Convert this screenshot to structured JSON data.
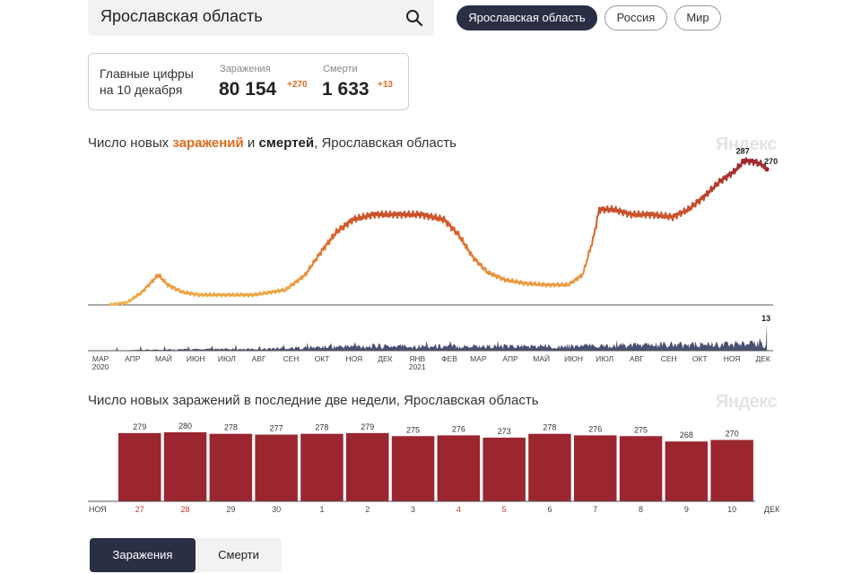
{
  "search": {
    "value": "Ярославская область"
  },
  "regions": [
    {
      "label": "Ярославская область",
      "active": true
    },
    {
      "label": "Россия",
      "active": false
    },
    {
      "label": "Мир",
      "active": false
    }
  ],
  "figures": {
    "label_line1": "Главные цифры",
    "label_line2": "на 10 декабря",
    "cases_caption": "Заражения",
    "cases_value": "80 154",
    "cases_delta": "+270",
    "deaths_caption": "Смерти",
    "deaths_value": "1 633",
    "deaths_delta": "+13"
  },
  "watermark": "Яндекс",
  "colors": {
    "accent": "#e06a1c",
    "bar": "#9b2630",
    "dark": "#2a2f45",
    "deaths": "#4a5070"
  },
  "chart_data": [
    {
      "type": "line",
      "title_parts": [
        "Число новых ",
        "заражений",
        " и ",
        "смертей",
        ", Ярославская область"
      ],
      "series": [
        {
          "name": "заражений",
          "x": [
            "2020-03-15",
            "2020-04-01",
            "2020-04-15",
            "2020-05-01",
            "2020-05-10",
            "2020-05-25",
            "2020-06-10",
            "2020-07-01",
            "2020-08-01",
            "2020-09-01",
            "2020-09-20",
            "2020-10-05",
            "2020-10-20",
            "2020-11-05",
            "2020-11-25",
            "2020-12-15",
            "2021-01-10",
            "2021-02-01",
            "2021-02-15",
            "2021-03-01",
            "2021-03-15",
            "2021-04-01",
            "2021-04-20",
            "2021-05-10",
            "2021-06-01",
            "2021-06-15",
            "2021-06-25",
            "2021-07-01",
            "2021-07-15",
            "2021-08-01",
            "2021-08-20",
            "2021-09-10",
            "2021-09-25",
            "2021-10-10",
            "2021-10-25",
            "2021-11-08",
            "2021-11-18",
            "2021-11-28",
            "2021-12-05",
            "2021-12-10"
          ],
          "values": [
            0,
            5,
            25,
            60,
            40,
            25,
            20,
            20,
            20,
            30,
            60,
            105,
            145,
            170,
            180,
            180,
            180,
            170,
            140,
            95,
            65,
            50,
            43,
            40,
            40,
            60,
            130,
            190,
            190,
            180,
            180,
            175,
            190,
            215,
            245,
            265,
            287,
            285,
            280,
            270
          ],
          "labels": [
            {
              "x": "2021-11-18",
              "text": "287"
            },
            {
              "x": "2021-12-10",
              "text": "270"
            }
          ]
        },
        {
          "name": "смертей",
          "x": [
            "2020-03-15",
            "2020-05-01",
            "2020-08-01",
            "2020-11-01",
            "2021-02-01",
            "2021-05-01",
            "2021-08-01",
            "2021-11-01",
            "2021-12-09",
            "2021-12-10"
          ],
          "values": [
            0,
            0.6,
            0.9,
            2.3,
            2.4,
            2.2,
            2.8,
            3.3,
            3.5,
            13
          ],
          "labels": [
            {
              "x": "2021-12-10",
              "text": "13"
            }
          ]
        }
      ],
      "x_ticks": [
        {
          "date": "2020-03-01",
          "label": "МАР",
          "sub": "2020"
        },
        {
          "date": "2020-04-01",
          "label": "АПР"
        },
        {
          "date": "2020-05-01",
          "label": "МАЙ"
        },
        {
          "date": "2020-06-01",
          "label": "ИЮН"
        },
        {
          "date": "2020-07-01",
          "label": "ИЮЛ"
        },
        {
          "date": "2020-08-01",
          "label": "АВГ"
        },
        {
          "date": "2020-09-01",
          "label": "СЕН"
        },
        {
          "date": "2020-10-01",
          "label": "ОКТ"
        },
        {
          "date": "2020-11-01",
          "label": "НОЯ"
        },
        {
          "date": "2020-12-01",
          "label": "ДЕК"
        },
        {
          "date": "2021-01-01",
          "label": "ЯНВ",
          "sub": "2021"
        },
        {
          "date": "2021-02-01",
          "label": "ФЕВ"
        },
        {
          "date": "2021-03-01",
          "label": "МАР"
        },
        {
          "date": "2021-04-01",
          "label": "АПР"
        },
        {
          "date": "2021-05-01",
          "label": "МАЙ"
        },
        {
          "date": "2021-06-01",
          "label": "ИЮН"
        },
        {
          "date": "2021-07-01",
          "label": "ИЮЛ"
        },
        {
          "date": "2021-08-01",
          "label": "АВГ"
        },
        {
          "date": "2021-09-01",
          "label": "СЕН"
        },
        {
          "date": "2021-10-01",
          "label": "ОКТ"
        },
        {
          "date": "2021-11-01",
          "label": "НОЯ"
        },
        {
          "date": "2021-12-01",
          "label": "ДЕК"
        }
      ],
      "x_range": [
        "2020-02-23",
        "2021-12-16"
      ],
      "ylim_cases": [
        0,
        300
      ],
      "ylim_deaths": [
        0,
        13
      ],
      "grid": false
    },
    {
      "type": "bar",
      "title": "Число новых заражений в последние две недели, Ярославская область",
      "categories": [
        "27",
        "28",
        "29",
        "30",
        "1",
        "2",
        "3",
        "4",
        "5",
        "6",
        "7",
        "8",
        "9",
        "10"
      ],
      "weekend": [
        true,
        true,
        false,
        false,
        false,
        false,
        false,
        true,
        true,
        false,
        false,
        false,
        false,
        false
      ],
      "values": [
        279,
        280,
        278,
        277,
        278,
        279,
        275,
        276,
        273,
        278,
        276,
        275,
        268,
        270
      ],
      "month_left": "НОЯ",
      "month_right": "ДЕК",
      "ylim": [
        0,
        300
      ]
    }
  ],
  "tabs": {
    "infections": "Заражения",
    "deaths": "Смерти"
  }
}
